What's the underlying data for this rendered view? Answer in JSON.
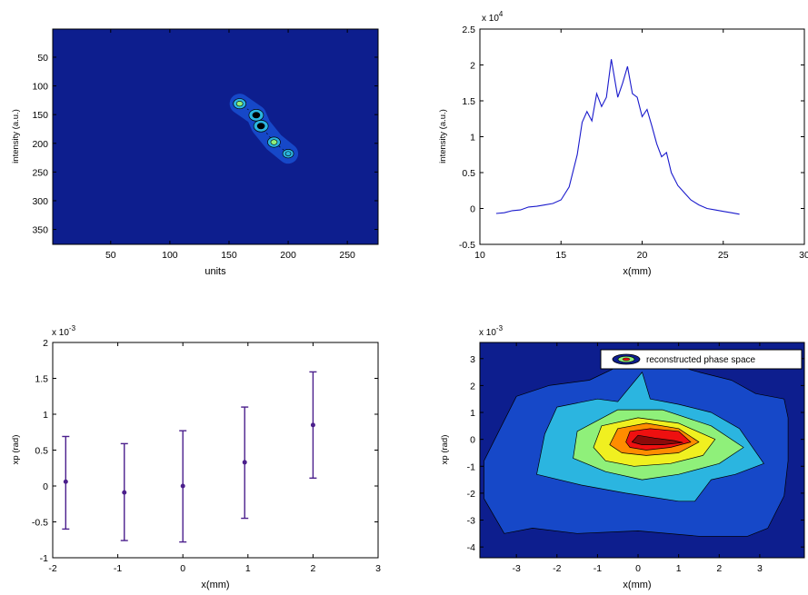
{
  "chart_data": [
    {
      "type": "heatmap",
      "xlabel": "units",
      "ylabel": "intensity (a.u.)",
      "xlim": [
        1,
        276
      ],
      "ylim": [
        1,
        376
      ],
      "xticks": [
        50,
        100,
        150,
        200,
        250
      ],
      "yticks": [
        50,
        100,
        150,
        200,
        250,
        300,
        350
      ],
      "background_level_color": "#0d1e8e",
      "level_colors": [
        "#0d1e8e",
        "#1648c8",
        "#2bb5e0",
        "#8ff07a",
        "#000000"
      ],
      "spots": [
        {
          "x": 159,
          "y": 131,
          "level": 3
        },
        {
          "x": 173,
          "y": 151,
          "level": 4
        },
        {
          "x": 177,
          "y": 170,
          "level": 4
        },
        {
          "x": 188,
          "y": 198,
          "level": 3
        },
        {
          "x": 200,
          "y": 218,
          "level": 2
        }
      ]
    },
    {
      "type": "line",
      "xlabel": "x(mm)",
      "ylabel": "intensity (a.u.)",
      "xlim": [
        10,
        30
      ],
      "ylim": [
        -0.5,
        2.5
      ],
      "y_multiplier": "x 10",
      "y_multiplier_exp": "4",
      "xticks": [
        10,
        15,
        20,
        25,
        30
      ],
      "yticks": [
        -0.5,
        0,
        0.5,
        1,
        1.5,
        2,
        2.5
      ],
      "series": [
        {
          "color": "#1a1acc",
          "x": [
            11,
            11.5,
            12,
            12.5,
            13,
            13.5,
            14,
            14.5,
            15,
            15.5,
            16,
            16.3,
            16.6,
            16.9,
            17.2,
            17.5,
            17.8,
            18.1,
            18.5,
            18.8,
            19.1,
            19.4,
            19.7,
            20.0,
            20.3,
            20.6,
            20.9,
            21.2,
            21.5,
            21.8,
            22.2,
            22.6,
            23,
            23.5,
            24,
            24.5,
            25,
            25.5,
            26
          ],
          "y": [
            -0.07,
            -0.06,
            -0.03,
            -0.02,
            0.02,
            0.03,
            0.05,
            0.07,
            0.12,
            0.3,
            0.75,
            1.2,
            1.35,
            1.22,
            1.6,
            1.42,
            1.55,
            2.08,
            1.55,
            1.75,
            1.98,
            1.6,
            1.55,
            1.28,
            1.38,
            1.15,
            0.9,
            0.72,
            0.78,
            0.5,
            0.32,
            0.22,
            0.12,
            0.05,
            0.0,
            -0.02,
            -0.04,
            -0.06,
            -0.08
          ]
        }
      ]
    },
    {
      "type": "scatter",
      "xlabel": "x(mm)",
      "ylabel": "xp (rad)",
      "xlim": [
        -2,
        3
      ],
      "ylim": [
        -1,
        2
      ],
      "y_multiplier": "x 10",
      "y_multiplier_exp": "-3",
      "xticks": [
        -2,
        -1,
        0,
        1,
        2,
        3
      ],
      "yticks": [
        -1,
        -0.5,
        0,
        0.5,
        1,
        1.5,
        2
      ],
      "color": "#4b1f8c",
      "points": [
        {
          "x": -1.8,
          "y": 0.06,
          "err_low": -0.6,
          "err_high": 0.69
        },
        {
          "x": -0.9,
          "y": -0.09,
          "err_low": -0.76,
          "err_high": 0.59
        },
        {
          "x": 0.0,
          "y": 0.0,
          "err_low": -0.78,
          "err_high": 0.77
        },
        {
          "x": 0.95,
          "y": 0.33,
          "err_low": -0.45,
          "err_high": 1.1
        },
        {
          "x": 2.0,
          "y": 0.85,
          "err_low": 0.11,
          "err_high": 1.59
        }
      ]
    },
    {
      "type": "heatmap",
      "xlabel": "x(mm)",
      "ylabel": "xp (rad)",
      "xlim": [
        -3.9,
        4.1
      ],
      "ylim": [
        -4.4,
        3.6
      ],
      "y_multiplier": "x 10",
      "y_multiplier_exp": "-3",
      "xticks": [
        -3,
        -2,
        -1,
        0,
        1,
        2,
        3
      ],
      "yticks": [
        -4,
        -3,
        -2,
        -1,
        0,
        1,
        2,
        3
      ],
      "legend": "reconstructed phase space",
      "legend_position": "top-right",
      "level_colors": [
        "#0d1e8e",
        "#1648c8",
        "#2bb5e0",
        "#8ff07a",
        "#f0f020",
        "#ff8c00",
        "#ee1010",
        "#8b0a0a"
      ],
      "contours": [
        {
          "level": 1,
          "points": [
            [
              -3.3,
              -3.5
            ],
            [
              -2.6,
              -3.3
            ],
            [
              -1.5,
              -3.5
            ],
            [
              0,
              -3.4
            ],
            [
              1.5,
              -3.6
            ],
            [
              2.7,
              -3.6
            ],
            [
              3.2,
              -3.3
            ],
            [
              3.6,
              -2.1
            ],
            [
              3.7,
              -0.8
            ],
            [
              3.7,
              0.8
            ],
            [
              3.6,
              1.5
            ],
            [
              2.9,
              1.7
            ],
            [
              2.3,
              2.2
            ],
            [
              1.5,
              2.5
            ],
            [
              0.8,
              2.8
            ],
            [
              -0.5,
              2.7
            ],
            [
              -1.2,
              2.2
            ],
            [
              -2.2,
              2.0
            ],
            [
              -3.0,
              1.6
            ],
            [
              -3.4,
              0.4
            ],
            [
              -3.8,
              -0.8
            ],
            [
              -3.8,
              -2.2
            ]
          ]
        },
        {
          "level": 2,
          "points": [
            [
              -2.5,
              -1.3
            ],
            [
              -2.3,
              0.2
            ],
            [
              -2.0,
              1.2
            ],
            [
              -1.0,
              1.5
            ],
            [
              -0.5,
              1.4
            ],
            [
              0.1,
              2.5
            ],
            [
              0.3,
              1.5
            ],
            [
              1.0,
              1.3
            ],
            [
              1.8,
              1.0
            ],
            [
              2.5,
              0.4
            ],
            [
              3.1,
              -0.9
            ],
            [
              2.4,
              -1.3
            ],
            [
              1.8,
              -1.5
            ],
            [
              1.4,
              -2.3
            ],
            [
              1.0,
              -2.3
            ],
            [
              -0.3,
              -2.0
            ],
            [
              -1.4,
              -1.7
            ]
          ]
        },
        {
          "level": 3,
          "points": [
            [
              -1.6,
              -0.7
            ],
            [
              -1.5,
              0.3
            ],
            [
              -0.5,
              1.1
            ],
            [
              0.6,
              1.1
            ],
            [
              1.8,
              0.5
            ],
            [
              2.6,
              -0.3
            ],
            [
              2.0,
              -0.9
            ],
            [
              1.0,
              -1.3
            ],
            [
              0.1,
              -1.5
            ],
            [
              -0.8,
              -1.2
            ]
          ]
        },
        {
          "level": 4,
          "points": [
            [
              -1.1,
              -0.3
            ],
            [
              -0.9,
              0.5
            ],
            [
              0.0,
              0.8
            ],
            [
              1.0,
              0.6
            ],
            [
              1.9,
              0.0
            ],
            [
              1.6,
              -0.6
            ],
            [
              0.8,
              -0.9
            ],
            [
              -0.1,
              -1.0
            ],
            [
              -0.8,
              -0.8
            ]
          ]
        },
        {
          "level": 5,
          "points": [
            [
              -0.7,
              -0.2
            ],
            [
              -0.5,
              0.4
            ],
            [
              0.2,
              0.6
            ],
            [
              1.0,
              0.4
            ],
            [
              1.5,
              -0.1
            ],
            [
              1.0,
              -0.5
            ],
            [
              0.2,
              -0.6
            ],
            [
              -0.4,
              -0.5
            ]
          ]
        },
        {
          "level": 6,
          "points": [
            [
              -0.3,
              -0.1
            ],
            [
              -0.2,
              0.3
            ],
            [
              0.3,
              0.4
            ],
            [
              1.0,
              0.3
            ],
            [
              1.3,
              -0.1
            ],
            [
              0.8,
              -0.3
            ],
            [
              0.2,
              -0.4
            ],
            [
              -0.2,
              -0.3
            ]
          ]
        },
        {
          "level": 7,
          "points": [
            [
              -0.15,
              -0.1
            ],
            [
              0.0,
              0.15
            ],
            [
              0.4,
              0.05
            ],
            [
              0.9,
              -0.05
            ],
            [
              1.1,
              -0.12
            ],
            [
              0.6,
              -0.2
            ],
            [
              0.1,
              -0.2
            ]
          ]
        }
      ]
    }
  ]
}
